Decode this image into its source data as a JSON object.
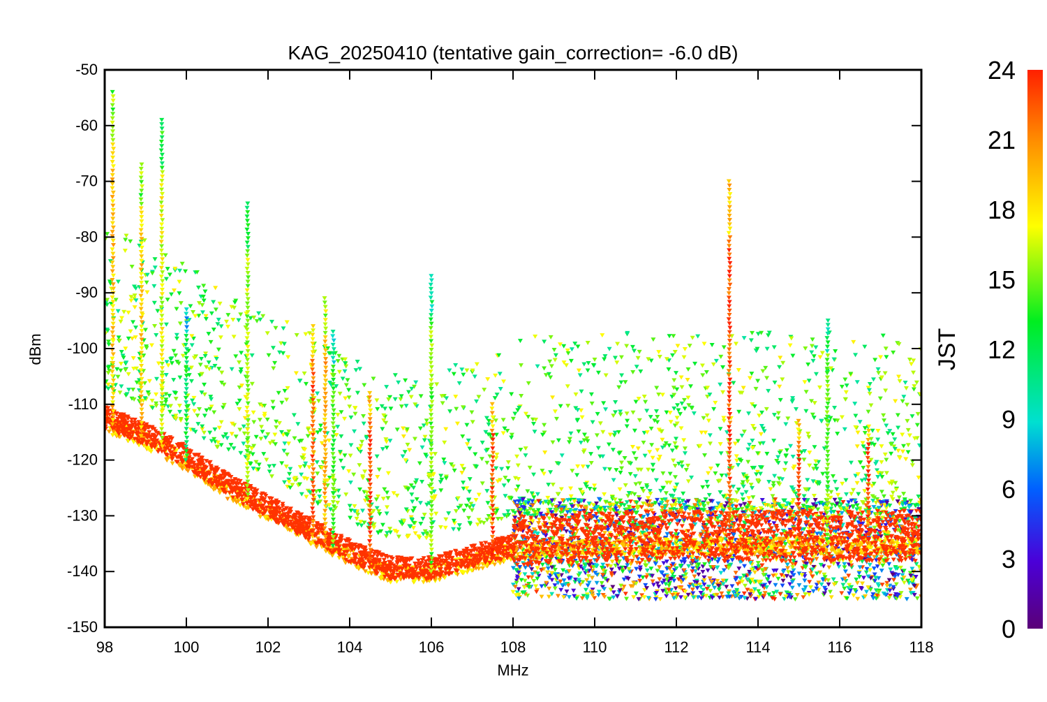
{
  "chart_data": {
    "type": "scatter",
    "title": "KAG_20250410 (tentative gain_correction= -6.0 dB)",
    "xlabel": "MHz",
    "ylabel": "dBm",
    "xlim": [
      98,
      118
    ],
    "ylim": [
      -150,
      -50
    ],
    "xticks": [
      98,
      100,
      102,
      104,
      106,
      108,
      110,
      112,
      114,
      116,
      118
    ],
    "yticks": [
      -50,
      -60,
      -70,
      -80,
      -90,
      -100,
      -110,
      -120,
      -130,
      -140,
      -150
    ],
    "colorbar": {
      "label": "JST",
      "range": [
        0,
        24
      ],
      "ticks": [
        0,
        3,
        6,
        9,
        12,
        15,
        18,
        21,
        24
      ],
      "colormap": "rainbow (purple → blue → cyan → green → yellow → orange → red)"
    },
    "noise_floor_dBm": [
      [
        98,
        -113
      ],
      [
        99,
        -116
      ],
      [
        100,
        -120
      ],
      [
        101,
        -125
      ],
      [
        102,
        -129
      ],
      [
        103,
        -133
      ],
      [
        104,
        -137
      ],
      [
        105,
        -140
      ],
      [
        106,
        -140
      ],
      [
        107,
        -138
      ],
      [
        108,
        -136
      ],
      [
        110,
        -135
      ],
      [
        112,
        -135
      ],
      [
        114,
        -135
      ],
      [
        116,
        -135
      ],
      [
        118,
        -135
      ]
    ],
    "spurious_band_above_108MHz_dBm": [
      -145,
      -127
    ],
    "peaks": [
      {
        "mhz": 98.2,
        "top_dBm": -54,
        "jst_color": 19
      },
      {
        "mhz": 98.9,
        "top_dBm": -67,
        "jst_color": 19
      },
      {
        "mhz": 99.4,
        "top_dBm": -59,
        "jst_color": 17
      },
      {
        "mhz": 100.0,
        "top_dBm": -93,
        "jst_color": 12
      },
      {
        "mhz": 101.5,
        "top_dBm": -74,
        "jst_color": 16
      },
      {
        "mhz": 103.1,
        "top_dBm": -96,
        "jst_color": 22
      },
      {
        "mhz": 103.4,
        "top_dBm": -91,
        "jst_color": 20
      },
      {
        "mhz": 103.6,
        "top_dBm": -97,
        "jst_color": 14
      },
      {
        "mhz": 104.5,
        "top_dBm": -108,
        "jst_color": 23
      },
      {
        "mhz": 106.0,
        "top_dBm": -87,
        "jst_color": 15
      },
      {
        "mhz": 107.5,
        "top_dBm": -110,
        "jst_color": 23
      },
      {
        "mhz": 113.3,
        "top_dBm": -70,
        "jst_color": 23
      },
      {
        "mhz": 115.0,
        "top_dBm": -113,
        "jst_color": 23
      },
      {
        "mhz": 115.7,
        "top_dBm": -95,
        "jst_color": 15
      },
      {
        "mhz": 116.7,
        "top_dBm": -114,
        "jst_color": 23
      }
    ]
  }
}
